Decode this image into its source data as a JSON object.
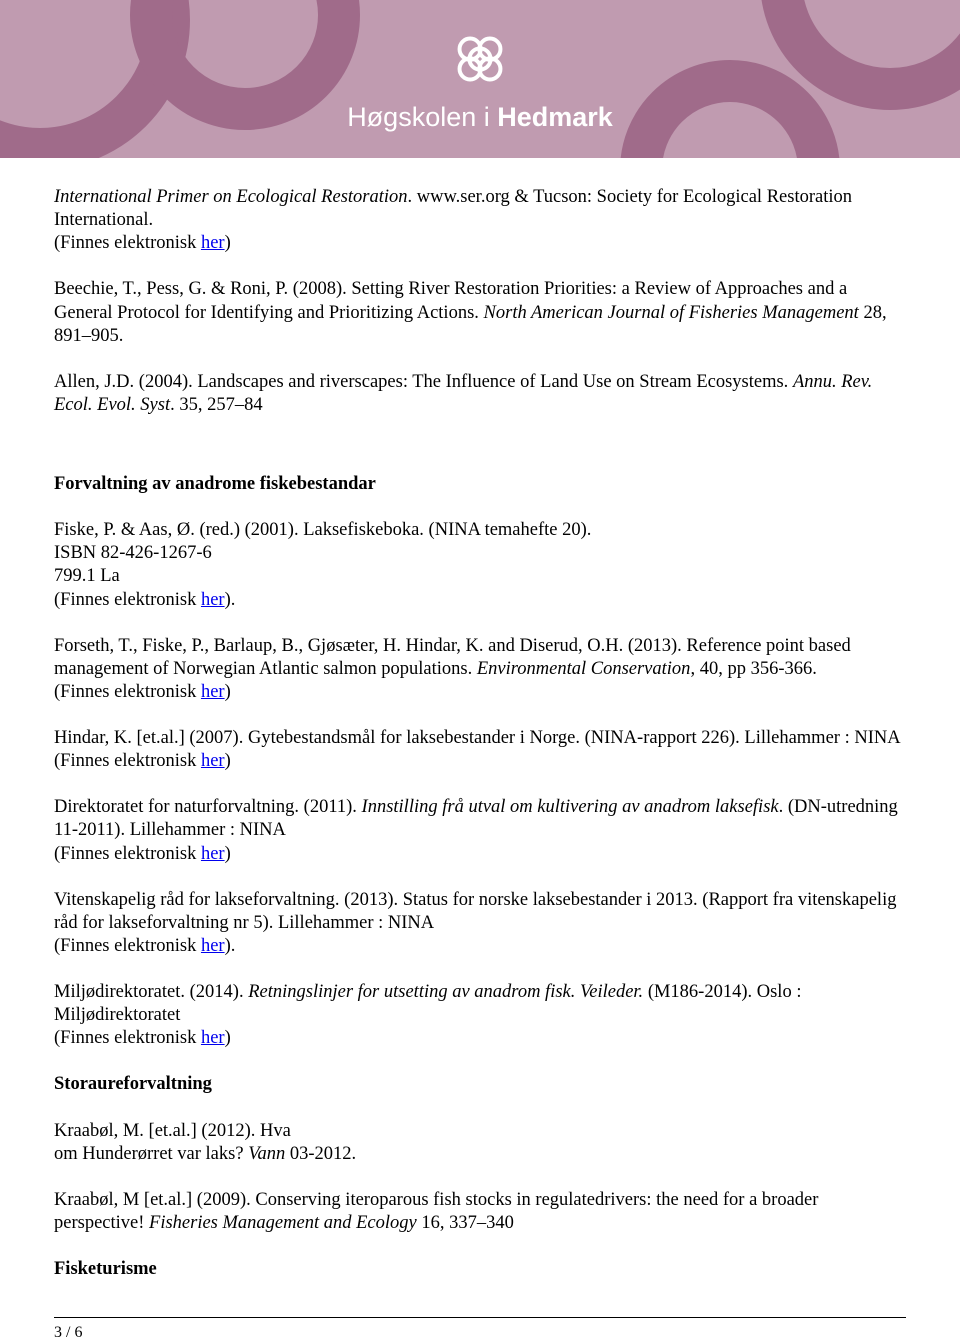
{
  "header": {
    "logo_text_light": "Høgskolen i ",
    "logo_text_bold": "Hedmark"
  },
  "refs": [
    {
      "lines": [
        {
          "parts": [
            {
              "t": "International Primer on Ecological Restoration",
              "italic": true
            },
            {
              "t": ". www.ser.org & Tucson: Society for Ecological Restoration International."
            }
          ]
        },
        {
          "parts": [
            {
              "t": "(Finnes elektronisk "
            },
            {
              "t": "her",
              "link": true
            },
            {
              "t": ")"
            }
          ]
        }
      ]
    },
    {
      "lines": [
        {
          "parts": [
            {
              "t": "Beechie, T., Pess, G. & Roni, P. (2008). Setting River Restoration Priorities: a Review of Approaches and a General Protocol for Identifying and Prioritizing Actions. "
            },
            {
              "t": "North American Journal of Fisheries Management",
              "italic": true
            },
            {
              "t": " 28, 891–905."
            }
          ]
        }
      ]
    },
    {
      "lines": [
        {
          "parts": [
            {
              "t": "Allen, J.D. (2004). Landscapes and riverscapes: The Influence of Land Use on Stream Ecosystems. "
            },
            {
              "t": "Annu. Rev. Ecol. Evol. Syst",
              "italic": true
            },
            {
              "t": ". 35, 257–84"
            }
          ]
        }
      ],
      "extra_gap": true
    },
    {
      "lines": [
        {
          "parts": [
            {
              "t": "Forvaltning av anadrome fiskebestandar",
              "bold": true
            }
          ]
        }
      ]
    },
    {
      "lines": [
        {
          "parts": [
            {
              "t": "Fiske, P. & Aas, Ø. (red.) (2001). Laksefiskeboka. (NINA temahefte 20)."
            }
          ]
        },
        {
          "parts": [
            {
              "t": "ISBN 82-426-1267-6"
            }
          ]
        },
        {
          "parts": [
            {
              "t": "799.1 La"
            }
          ]
        },
        {
          "parts": [
            {
              "t": "(Finnes elektronisk "
            },
            {
              "t": "her",
              "link": true
            },
            {
              "t": ")."
            }
          ]
        }
      ]
    },
    {
      "lines": [
        {
          "parts": [
            {
              "t": "Forseth, T., Fiske, P., Barlaup, B., Gjøsæter, H. Hindar, K. and Diserud, O.H. (2013). Reference point based management of Norwegian Atlantic salmon populations. "
            },
            {
              "t": "Environmental Conservation",
              "italic": true
            },
            {
              "t": ", 40, pp 356-366."
            }
          ]
        },
        {
          "parts": [
            {
              "t": "(Finnes elektronisk "
            },
            {
              "t": "her",
              "link": true
            },
            {
              "t": ")"
            }
          ]
        }
      ]
    },
    {
      "lines": [
        {
          "parts": [
            {
              "t": "Hindar, K. [et.al.] (2007). Gytebestandsmål for laksebestander i Norge. (NINA-rapport 226). Lillehammer : NINA"
            }
          ]
        },
        {
          "parts": [
            {
              "t": "(Finnes elektronisk "
            },
            {
              "t": "her",
              "link": true
            },
            {
              "t": ")"
            }
          ]
        }
      ]
    },
    {
      "lines": [
        {
          "parts": [
            {
              "t": "Direktoratet for naturforvaltning. (2011). "
            },
            {
              "t": "Innstilling frå utval om kultivering av anadrom laksefisk",
              "italic": true
            },
            {
              "t": ". (DN-utredning 11-2011). Lillehammer : NINA"
            }
          ]
        },
        {
          "parts": [
            {
              "t": "(Finnes elektronisk "
            },
            {
              "t": "her",
              "link": true
            },
            {
              "t": ")"
            }
          ]
        }
      ]
    },
    {
      "lines": [
        {
          "parts": [
            {
              "t": " Vitenskapelig råd for lakseforvaltning. (2013). Status for norske laksebestander i 2013. (Rapport fra vitenskapelig råd for lakseforvaltning nr 5). Lillehammer : NINA"
            }
          ]
        },
        {
          "parts": [
            {
              "t": "(Finnes elektronisk "
            },
            {
              "t": "her",
              "link": true
            },
            {
              "t": ")."
            }
          ]
        }
      ]
    },
    {
      "lines": [
        {
          "parts": [
            {
              "t": "Miljødirektoratet. (2014). "
            },
            {
              "t": "Retningslinjer for utsetting av anadrom fisk. Veileder.",
              "italic": true
            },
            {
              "t": " (M186-2014). Oslo : Miljødirektoratet"
            }
          ]
        },
        {
          "parts": [
            {
              "t": "(Finnes elektronisk "
            },
            {
              "t": "her",
              "link": true
            },
            {
              "t": ")"
            }
          ]
        }
      ]
    },
    {
      "lines": [
        {
          "parts": [
            {
              "t": "Storaureforvaltning",
              "bold": true
            }
          ]
        }
      ]
    },
    {
      "lines": [
        {
          "parts": [
            {
              "t": "Kraabøl, M. [et.al.] (2012). Hva"
            }
          ]
        },
        {
          "parts": [
            {
              "t": "om Hunderørret var laks? "
            },
            {
              "t": "Vann",
              "italic": true
            },
            {
              "t": " 03-2012."
            }
          ]
        }
      ]
    },
    {
      "lines": [
        {
          "parts": [
            {
              "t": "Kraabøl, M [et.al.] (2009). Conserving iteroparous fish stocks in regulatedrivers: the need for a broader perspective! "
            },
            {
              "t": "Fisheries Management and Ecology",
              "italic": true
            },
            {
              "t": " 16, 337–340"
            }
          ]
        }
      ]
    },
    {
      "lines": [
        {
          "parts": [
            {
              "t": "Fisketurisme",
              "bold": true
            }
          ]
        }
      ]
    }
  ],
  "footer": {
    "page": "3 / 6"
  }
}
